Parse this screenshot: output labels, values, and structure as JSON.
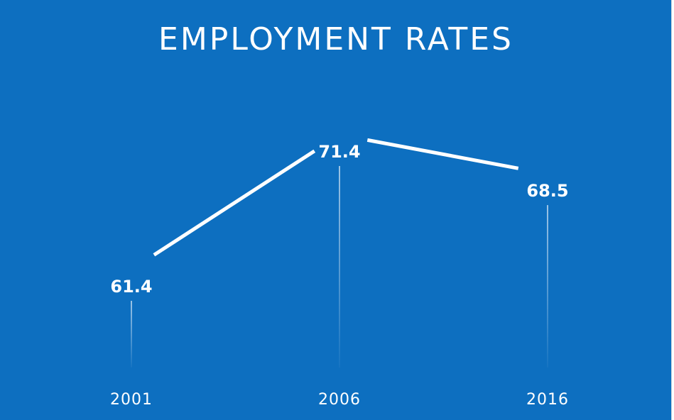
{
  "chart_data": {
    "type": "line",
    "title": "EMPLOYMENT RATES",
    "categories": [
      "2001",
      "2006",
      "2016"
    ],
    "series": [
      {
        "values": [
          61.4,
          71.4,
          68.5
        ]
      }
    ],
    "data_labels": [
      "61.4",
      "71.4",
      "68.5"
    ],
    "xlabel": "",
    "ylabel": "",
    "grid": false,
    "legend": "none",
    "colors": {
      "background": "#0d6fc0",
      "line": "#ffffff",
      "text": "#ffffff"
    }
  }
}
